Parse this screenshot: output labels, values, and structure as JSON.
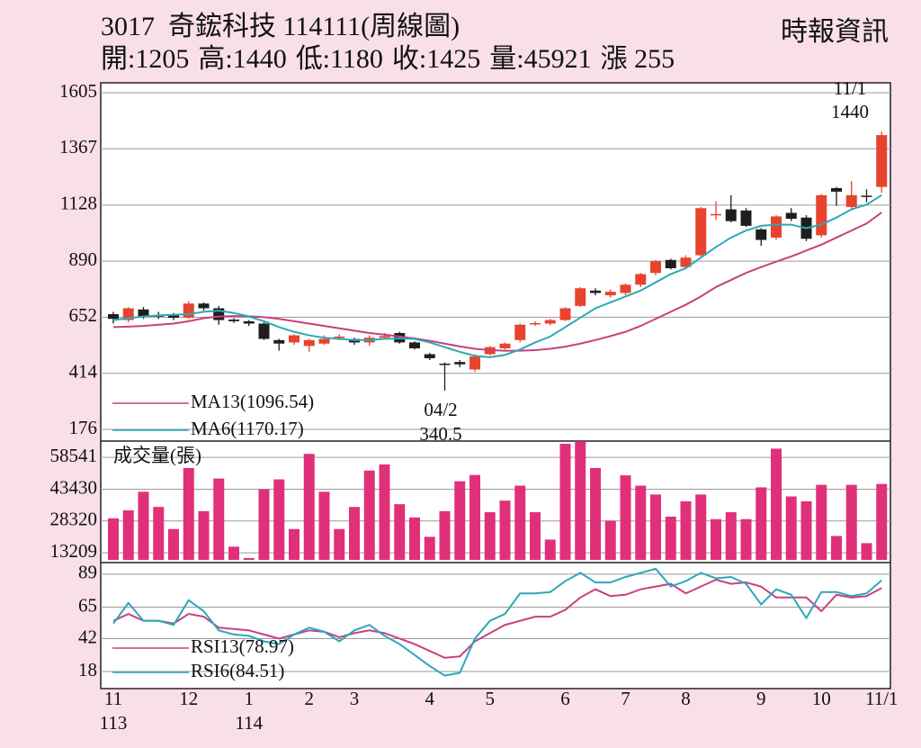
{
  "chart_data": [
    {
      "type": "candlestick",
      "title": "3017  奇鋐科技 114111(周線圖)",
      "source": "時報資訊",
      "stat_labels": [
        "開:",
        "高:",
        "低:",
        "收:",
        "量:",
        "漲 "
      ],
      "change": 255,
      "categories": [
        "11",
        null,
        null,
        null,
        null,
        "12",
        null,
        null,
        null,
        "1",
        null,
        null,
        null,
        "2",
        null,
        null,
        "3",
        null,
        null,
        null,
        null,
        "4",
        null,
        null,
        null,
        "5",
        null,
        null,
        null,
        null,
        "6",
        null,
        null,
        null,
        "7",
        null,
        null,
        null,
        "8",
        null,
        null,
        null,
        null,
        "9",
        null,
        null,
        null,
        "10",
        null,
        null,
        null,
        "11/1"
      ],
      "year_labels": [
        "113",
        null,
        null,
        null,
        null,
        null,
        null,
        null,
        null,
        "114",
        null,
        null,
        null,
        null,
        null,
        null,
        null,
        null,
        null,
        null,
        null,
        null,
        null,
        null,
        null,
        null,
        null,
        null,
        null,
        null,
        null,
        null,
        null,
        null,
        null,
        null,
        null,
        null,
        null,
        null,
        null,
        null,
        null,
        null,
        null,
        null,
        null,
        null,
        null,
        null,
        null,
        null
      ],
      "open": [
        665,
        640,
        685,
        660,
        660,
        650,
        710,
        690,
        642,
        635,
        625,
        555,
        545,
        530,
        540,
        565,
        560,
        545,
        565,
        585,
        545,
        495,
        455,
        462,
        430,
        495,
        520,
        555,
        622,
        625,
        640,
        700,
        765,
        745,
        755,
        790,
        840,
        895,
        865,
        915,
        1085,
        1110,
        1105,
        1025,
        990,
        1095,
        1075,
        1000,
        1200,
        1120,
        1168,
        1205
      ],
      "high": [
        675,
        695,
        695,
        675,
        670,
        720,
        715,
        700,
        648,
        640,
        630,
        560,
        580,
        560,
        575,
        580,
        565,
        575,
        585,
        590,
        550,
        500,
        460,
        470,
        495,
        530,
        545,
        625,
        635,
        645,
        695,
        780,
        775,
        770,
        795,
        840,
        895,
        900,
        915,
        1120,
        1145,
        1170,
        1115,
        1030,
        1085,
        1115,
        1085,
        1175,
        1205,
        1230,
        1195,
        1440
      ],
      "low": [
        625,
        630,
        645,
        645,
        640,
        645,
        680,
        620,
        628,
        615,
        555,
        510,
        535,
        505,
        535,
        555,
        535,
        530,
        560,
        540,
        515,
        470,
        340.5,
        440,
        420,
        490,
        515,
        545,
        615,
        618,
        635,
        695,
        745,
        735,
        745,
        780,
        830,
        855,
        855,
        910,
        1065,
        1055,
        1035,
        955,
        980,
        1060,
        975,
        990,
        1125,
        1110,
        1140,
        1180
      ],
      "close": [
        645,
        690,
        655,
        655,
        650,
        710,
        690,
        640,
        635,
        625,
        560,
        540,
        575,
        555,
        560,
        570,
        545,
        565,
        572,
        545,
        520,
        478,
        450,
        452,
        485,
        525,
        540,
        620,
        627,
        640,
        690,
        775,
        755,
        760,
        790,
        835,
        890,
        860,
        905,
        1115,
        1090,
        1060,
        1040,
        980,
        1080,
        1070,
        985,
        1170,
        1185,
        1170,
        1165,
        1425
      ],
      "up_color": "#e8432e",
      "down_color": "#1e1e1e",
      "series": [
        {
          "name": "MA13(1096.54)",
          "color": "#c8407e",
          "values": [
            610,
            612,
            615,
            620,
            625,
            635,
            648,
            655,
            657,
            656,
            652,
            645,
            635,
            625,
            615,
            605,
            595,
            585,
            578,
            570,
            562,
            552,
            540,
            528,
            518,
            512,
            510,
            510,
            512,
            518,
            527,
            540,
            555,
            572,
            590,
            615,
            645,
            675,
            705,
            740,
            780,
            810,
            840,
            865,
            888,
            910,
            935,
            960,
            990,
            1020,
            1050,
            1096.54
          ]
        },
        {
          "name": "MA6(1170.17)",
          "color": "#2aa9b8",
          "values": [
            640,
            648,
            655,
            660,
            662,
            665,
            675,
            680,
            670,
            655,
            635,
            610,
            590,
            575,
            565,
            560,
            555,
            555,
            560,
            562,
            560,
            545,
            525,
            505,
            488,
            482,
            492,
            515,
            545,
            570,
            610,
            650,
            690,
            715,
            740,
            765,
            800,
            835,
            860,
            905,
            950,
            990,
            1020,
            1040,
            1045,
            1045,
            1030,
            1045,
            1075,
            1110,
            1130,
            1170.17
          ]
        }
      ],
      "annotations": [
        "11/1",
        "04/2"
      ],
      "ylim": [
        176,
        1605
      ],
      "yticks": [
        176,
        414,
        652,
        890,
        1128,
        1367,
        1605
      ],
      "grid": true
    },
    {
      "type": "bar",
      "title": "成交量(張)",
      "color": "#e0307a",
      "values": [
        29600,
        33400,
        42200,
        35000,
        24500,
        53500,
        33000,
        48500,
        16100,
        10700,
        43400,
        48100,
        24500,
        60200,
        42200,
        24500,
        35000,
        52300,
        55200,
        36300,
        30000,
        20800,
        33000,
        47200,
        50200,
        32500,
        38000,
        45100,
        32500,
        19500,
        65000,
        66200,
        53500,
        28500,
        50000,
        45100,
        40900,
        30400,
        37700,
        40900,
        29200,
        32500,
        29200,
        44300,
        62700,
        40000,
        37700,
        45500,
        21200,
        45500,
        17800,
        45921
      ],
      "ylim": [
        9850,
        66300
      ],
      "yticks": [
        13209,
        28320,
        43430,
        58541
      ],
      "grid": true
    },
    {
      "type": "line",
      "series": [
        {
          "name": "RSI13(78.97)",
          "color": "#c8407e",
          "values": [
            55,
            60,
            55,
            55,
            53,
            60,
            58,
            50,
            49,
            48,
            45,
            42,
            45,
            48,
            47,
            43,
            46,
            48,
            46,
            42,
            38,
            33,
            28,
            29,
            40,
            46,
            52,
            55,
            58,
            58,
            63,
            72,
            78,
            73,
            74,
            78,
            80,
            82,
            75,
            80,
            85,
            82,
            83,
            80,
            72,
            72,
            72,
            62,
            74,
            72,
            73,
            78.97
          ]
        },
        {
          "name": "RSI6(84.51)",
          "color": "#2aa9b8",
          "values": [
            53,
            68,
            55,
            55,
            52,
            70,
            62,
            48,
            45,
            44,
            40,
            38,
            45,
            50,
            47,
            40,
            48,
            52,
            44,
            38,
            30,
            22,
            15,
            17,
            42,
            55,
            60,
            75,
            75,
            76,
            84,
            90,
            83,
            83,
            87,
            90,
            93,
            80,
            84,
            90,
            86,
            87,
            82,
            67,
            78,
            74,
            57,
            76,
            76,
            73,
            75,
            84.51
          ]
        }
      ],
      "ylim": [
        5.5,
        97.5
      ],
      "yticks": [
        18,
        42,
        65,
        89
      ],
      "grid": true
    }
  ]
}
